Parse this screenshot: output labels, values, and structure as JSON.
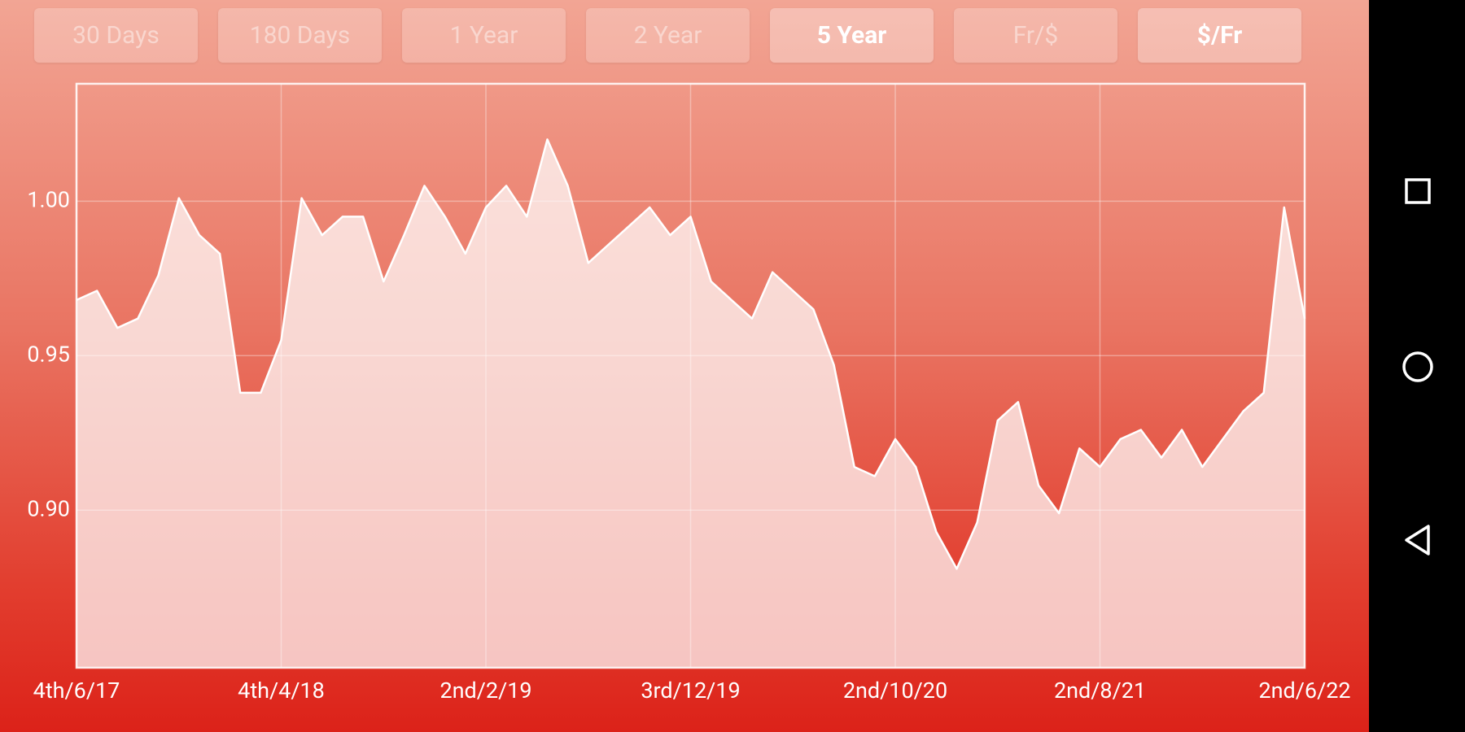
{
  "buttons": [
    {
      "label": "30 Days",
      "active": false
    },
    {
      "label": "180 Days",
      "active": false
    },
    {
      "label": "1 Year",
      "active": false
    },
    {
      "label": "2 Year",
      "active": false
    },
    {
      "label": "5 Year",
      "active": true
    },
    {
      "label": "Fr/$",
      "active": false
    },
    {
      "label": "$/Fr",
      "active": true
    }
  ],
  "chart_data": {
    "type": "area",
    "categories": [
      "4th/6/17",
      null,
      null,
      null,
      null,
      null,
      null,
      null,
      null,
      null,
      "4th/4/18",
      null,
      null,
      null,
      null,
      null,
      null,
      null,
      null,
      null,
      "2nd/2/19",
      null,
      null,
      null,
      null,
      null,
      null,
      null,
      null,
      null,
      "3rd/12/19",
      null,
      null,
      null,
      null,
      null,
      null,
      null,
      null,
      null,
      "2nd/10/20",
      null,
      null,
      null,
      null,
      null,
      null,
      null,
      null,
      null,
      "2nd/8/21",
      null,
      null,
      null,
      null,
      null,
      null,
      null,
      null,
      null,
      "2nd/6/22"
    ],
    "values": [
      0.968,
      0.971,
      0.959,
      0.962,
      0.976,
      1.001,
      0.989,
      0.983,
      0.938,
      0.938,
      0.955,
      1.001,
      0.989,
      0.995,
      0.995,
      0.974,
      0.989,
      1.005,
      0.995,
      0.983,
      0.998,
      1.005,
      0.995,
      1.02,
      1.005,
      0.98,
      0.986,
      0.992,
      0.998,
      0.989,
      0.995,
      0.974,
      0.968,
      0.962,
      0.977,
      0.971,
      0.965,
      0.947,
      0.914,
      0.911,
      0.923,
      0.914,
      0.893,
      0.881,
      0.896,
      0.929,
      0.935,
      0.908,
      0.899,
      0.92,
      0.914,
      0.923,
      0.926,
      0.917,
      0.926,
      0.914,
      0.923,
      0.932,
      0.938,
      0.998,
      0.962
    ],
    "color": "#ffffff",
    "ylim": [
      0.849,
      1.038
    ],
    "yticks": [
      {
        "value": 0.9,
        "label": "0.90"
      },
      {
        "value": 0.95,
        "label": "0.95"
      },
      {
        "value": 1,
        "label": "1.00"
      }
    ],
    "grid": true
  }
}
